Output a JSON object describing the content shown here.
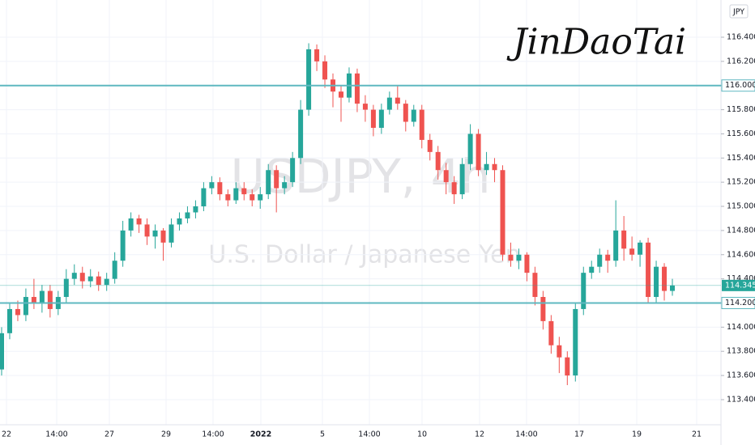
{
  "chart_data": {
    "type": "candlestick",
    "watermark": "USDJPY, 4h",
    "watermark_subtitle": "U.S. Dollar / Japanese Yen",
    "signature": "JinDaoTai",
    "currency": "JPY",
    "up_color": "#26a69a",
    "down_color": "#ef5350",
    "ylim": [
      113.192,
      116.708
    ],
    "yticks": [
      {
        "value": 113.4,
        "label": "113.400"
      },
      {
        "value": 113.6,
        "label": "113.600"
      },
      {
        "value": 113.8,
        "label": "113.800"
      },
      {
        "value": 114.0,
        "label": "114.000"
      },
      {
        "value": 114.2,
        "label": "114.200"
      },
      {
        "value": 114.4,
        "label": "114.400"
      },
      {
        "value": 114.6,
        "label": "114.600"
      },
      {
        "value": 114.8,
        "label": "114.800"
      },
      {
        "value": 115.0,
        "label": "115.000"
      },
      {
        "value": 115.2,
        "label": "115.200"
      },
      {
        "value": 115.4,
        "label": "115.400"
      },
      {
        "value": 115.6,
        "label": "115.600"
      },
      {
        "value": 115.8,
        "label": "115.800"
      },
      {
        "value": 116.0,
        "label": "116.000"
      },
      {
        "value": 116.2,
        "label": "116.200"
      },
      {
        "value": 116.4,
        "label": "116.400"
      }
    ],
    "levels": [
      {
        "value": 116,
        "label": "116.000"
      },
      {
        "value": 114.2,
        "label": "114.200"
      }
    ],
    "level_color": "#5fb8c0",
    "last_price": {
      "value": 114.345,
      "label": "114.345"
    },
    "x_labels": [
      "22",
      "14:00",
      "27",
      "29",
      "14:00",
      "2022",
      "5",
      "14:00",
      "10",
      "12",
      "14:00",
      "17",
      "19",
      "21"
    ],
    "candles": [
      [
        113.65,
        114.0,
        113.6,
        113.95
      ],
      [
        113.95,
        114.2,
        113.9,
        114.15
      ],
      [
        114.15,
        114.22,
        114.05,
        114.1
      ],
      [
        114.1,
        114.32,
        114.05,
        114.25
      ],
      [
        114.25,
        114.4,
        114.15,
        114.2
      ],
      [
        114.2,
        114.35,
        114.12,
        114.3
      ],
      [
        114.3,
        114.35,
        114.08,
        114.15
      ],
      [
        114.15,
        114.3,
        114.1,
        114.25
      ],
      [
        114.25,
        114.48,
        114.2,
        114.4
      ],
      [
        114.4,
        114.52,
        114.35,
        114.45
      ],
      [
        114.45,
        114.5,
        114.32,
        114.38
      ],
      [
        114.38,
        114.48,
        114.33,
        114.42
      ],
      [
        114.42,
        114.46,
        114.3,
        114.35
      ],
      [
        114.35,
        114.45,
        114.3,
        114.4
      ],
      [
        114.4,
        114.62,
        114.36,
        114.55
      ],
      [
        114.55,
        114.88,
        114.5,
        114.8
      ],
      [
        114.8,
        114.95,
        114.75,
        114.9
      ],
      [
        114.9,
        114.93,
        114.78,
        114.85
      ],
      [
        114.85,
        114.9,
        114.68,
        114.75
      ],
      [
        114.75,
        114.85,
        114.65,
        114.8
      ],
      [
        114.8,
        114.82,
        114.55,
        114.7
      ],
      [
        114.7,
        114.9,
        114.66,
        114.85
      ],
      [
        114.85,
        114.95,
        114.8,
        114.9
      ],
      [
        114.9,
        115.0,
        114.86,
        114.95
      ],
      [
        114.95,
        115.05,
        114.9,
        115.0
      ],
      [
        115.0,
        115.2,
        114.96,
        115.15
      ],
      [
        115.15,
        115.25,
        115.1,
        115.2
      ],
      [
        115.2,
        115.24,
        115.05,
        115.1
      ],
      [
        115.1,
        115.14,
        115.0,
        115.05
      ],
      [
        115.05,
        115.2,
        115.02,
        115.15
      ],
      [
        115.15,
        115.2,
        115.05,
        115.1
      ],
      [
        115.1,
        115.14,
        115.0,
        115.05
      ],
      [
        115.05,
        115.16,
        114.98,
        115.1
      ],
      [
        115.1,
        115.35,
        115.06,
        115.3
      ],
      [
        115.3,
        115.34,
        114.95,
        115.15
      ],
      [
        115.15,
        115.25,
        115.1,
        115.2
      ],
      [
        115.2,
        115.45,
        115.16,
        115.4
      ],
      [
        115.4,
        115.88,
        115.35,
        115.8
      ],
      [
        115.8,
        116.35,
        115.75,
        116.3
      ],
      [
        116.3,
        116.34,
        116.12,
        116.2
      ],
      [
        116.2,
        116.25,
        115.98,
        116.05
      ],
      [
        116.05,
        116.1,
        115.82,
        115.95
      ],
      [
        115.95,
        116.0,
        115.7,
        115.9
      ],
      [
        115.9,
        116.15,
        115.86,
        116.1
      ],
      [
        116.1,
        116.14,
        115.78,
        115.85
      ],
      [
        115.85,
        115.92,
        115.7,
        115.8
      ],
      [
        115.8,
        115.84,
        115.58,
        115.65
      ],
      [
        115.65,
        115.85,
        115.6,
        115.8
      ],
      [
        115.8,
        115.95,
        115.76,
        115.9
      ],
      [
        115.9,
        116.0,
        115.8,
        115.85
      ],
      [
        115.85,
        115.88,
        115.62,
        115.7
      ],
      [
        115.7,
        115.84,
        115.66,
        115.8
      ],
      [
        115.8,
        115.84,
        115.48,
        115.55
      ],
      [
        115.55,
        115.6,
        115.38,
        115.45
      ],
      [
        115.45,
        115.5,
        115.22,
        115.3
      ],
      [
        115.3,
        115.36,
        115.1,
        115.2
      ],
      [
        115.2,
        115.25,
        115.02,
        115.1
      ],
      [
        115.1,
        115.4,
        115.06,
        115.35
      ],
      [
        115.35,
        115.68,
        115.3,
        115.6
      ],
      [
        115.6,
        115.64,
        115.25,
        115.3
      ],
      [
        115.3,
        115.45,
        115.26,
        115.35
      ],
      [
        115.35,
        115.4,
        115.2,
        115.3
      ],
      [
        115.3,
        115.34,
        114.55,
        114.6
      ],
      [
        114.6,
        114.7,
        114.5,
        114.55
      ],
      [
        114.55,
        114.65,
        114.48,
        114.6
      ],
      [
        114.6,
        114.62,
        114.38,
        114.45
      ],
      [
        114.45,
        114.5,
        114.18,
        114.25
      ],
      [
        114.25,
        114.3,
        113.98,
        114.05
      ],
      [
        114.05,
        114.1,
        113.78,
        113.85
      ],
      [
        113.85,
        113.92,
        113.62,
        113.75
      ],
      [
        113.75,
        113.8,
        113.52,
        113.6
      ],
      [
        113.6,
        114.2,
        113.55,
        114.15
      ],
      [
        114.15,
        114.5,
        114.1,
        114.45
      ],
      [
        114.45,
        114.55,
        114.4,
        114.5
      ],
      [
        114.5,
        114.65,
        114.45,
        114.6
      ],
      [
        114.6,
        114.64,
        114.45,
        114.55
      ],
      [
        114.55,
        115.05,
        114.5,
        114.8
      ],
      [
        114.8,
        114.92,
        114.55,
        114.65
      ],
      [
        114.65,
        114.75,
        114.55,
        114.6
      ],
      [
        114.6,
        114.72,
        114.5,
        114.7
      ],
      [
        114.7,
        114.74,
        114.2,
        114.25
      ],
      [
        114.25,
        114.55,
        114.2,
        114.5
      ],
      [
        114.5,
        114.53,
        114.22,
        114.3
      ],
      [
        114.3,
        114.4,
        114.26,
        114.345
      ]
    ]
  }
}
